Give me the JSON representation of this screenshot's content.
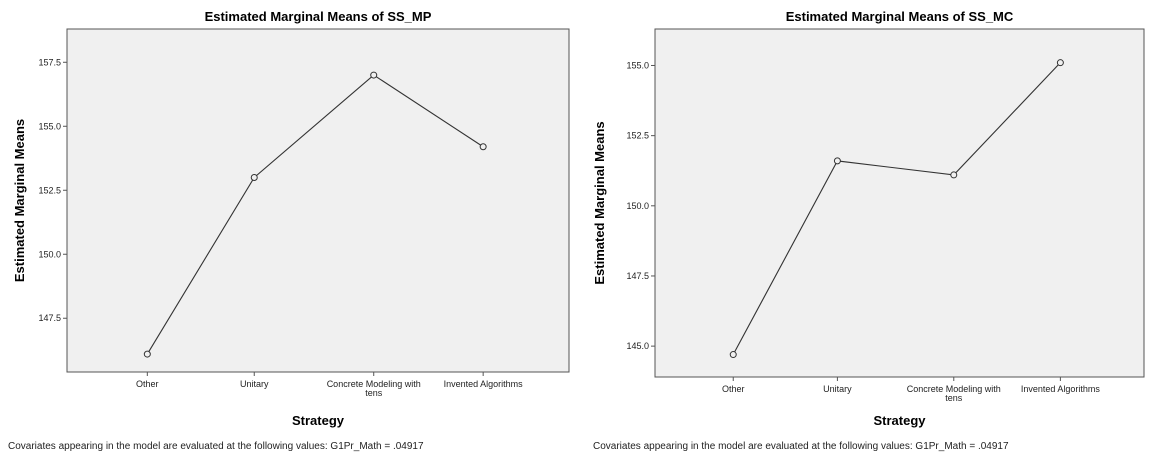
{
  "chart_data": [
    {
      "type": "line",
      "title": "Estimated Marginal Means of SS_MP",
      "xlabel": "Strategy",
      "ylabel": "Estimated Marginal Means",
      "categories": [
        "Other",
        "Unitary",
        "Concrete Modeling with tens",
        "Invented Algorithms"
      ],
      "values": [
        146.1,
        153.0,
        157.0,
        154.2
      ],
      "ylim": [
        145.4,
        158.8
      ],
      "yticks": [
        "147.5",
        "150.0",
        "152.5",
        "155.0",
        "157.5"
      ],
      "footnote": "Covariates appearing in the model are evaluated at the following values: G1Pr_Math = .04917",
      "grid": false
    },
    {
      "type": "line",
      "title": "Estimated Marginal Means of SS_MC",
      "xlabel": "Strategy",
      "ylabel": "Estimated Marginal Means",
      "categories": [
        "Other",
        "Unitary",
        "Concrete Modeling with tens",
        "Invented Algorithms"
      ],
      "values": [
        144.7,
        151.6,
        151.1,
        155.1
      ],
      "ylim": [
        143.9,
        156.3
      ],
      "yticks": [
        "145.0",
        "147.5",
        "150.0",
        "152.5",
        "155.0"
      ],
      "footnote": "Covariates appearing in the model are evaluated at the following values: G1Pr_Math = .04917",
      "grid": false
    }
  ],
  "colors": {
    "plot_bg": "#f0f0f0",
    "line": "#333333",
    "axis": "#555555"
  }
}
